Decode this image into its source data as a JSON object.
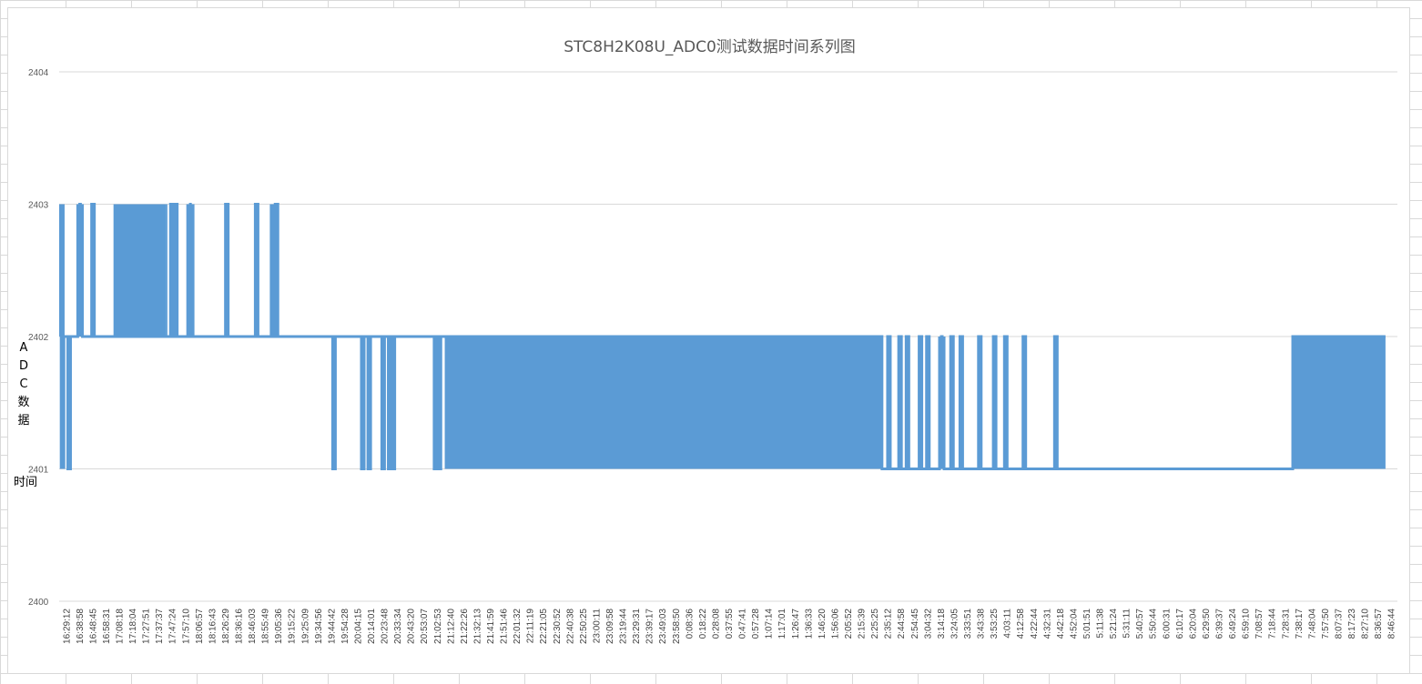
{
  "chart_data": {
    "type": "line",
    "title": "STC8H2K08U_ADC0测试数据时间系列图",
    "ylabel_chars": [
      "A",
      "D",
      "C",
      "数",
      "据"
    ],
    "xlabel": "时间",
    "ylim": [
      2400,
      2404
    ],
    "yticks": [
      "2400",
      "2401",
      "2402",
      "2403",
      "2404"
    ],
    "grid": true,
    "line_color": "#5b9bd5",
    "x_categories": [
      "16:29:12",
      "16:38:58",
      "16:48:45",
      "16:58:31",
      "17:08:18",
      "17:18:04",
      "17:27:51",
      "17:37:37",
      "17:47:24",
      "17:57:10",
      "18:06:57",
      "18:16:43",
      "18:26:29",
      "18:36:16",
      "18:46:03",
      "18:55:49",
      "19:05:36",
      "19:15:22",
      "19:25:09",
      "19:34:56",
      "19:44:42",
      "19:54:28",
      "20:04:15",
      "20:14:01",
      "20:23:48",
      "20:33:34",
      "20:43:20",
      "20:53:07",
      "21:02:53",
      "21:12:40",
      "21:22:26",
      "21:32:13",
      "21:41:59",
      "21:51:46",
      "22:01:32",
      "22:11:19",
      "22:21:05",
      "22:30:52",
      "22:40:38",
      "22:50:25",
      "23:00:11",
      "23:09:58",
      "23:19:44",
      "23:29:31",
      "23:39:17",
      "23:49:03",
      "23:58:50",
      "0:08:36",
      "0:18:22",
      "0:28:08",
      "0:37:55",
      "0:47:41",
      "0:57:28",
      "1:07:14",
      "1:17:01",
      "1:26:47",
      "1:36:33",
      "1:46:20",
      "1:56:06",
      "2:05:52",
      "2:15:39",
      "2:25:25",
      "2:35:12",
      "2:44:58",
      "2:54:45",
      "3:04:32",
      "3:14:18",
      "3:24:05",
      "3:33:51",
      "3:43:38",
      "3:53:25",
      "4:03:11",
      "4:12:58",
      "4:22:44",
      "4:32:31",
      "4:42:18",
      "4:52:04",
      "5:01:51",
      "5:11:38",
      "5:21:24",
      "5:31:11",
      "5:40:57",
      "5:50:44",
      "6:00:31",
      "6:10:17",
      "6:20:04",
      "6:29:50",
      "6:39:37",
      "6:49:24",
      "6:59:10",
      "7:08:57",
      "7:18:44",
      "7:28:31",
      "7:38:17",
      "7:48:04",
      "7:57:50",
      "8:07:37",
      "8:17:23",
      "8:27:10",
      "8:36:57",
      "8:46:44"
    ],
    "segments": [
      {
        "from": "16:29:12",
        "to": "16:38:58",
        "level": 2402,
        "spikes": [
          [
            0.0,
            2403
          ],
          [
            0.05,
            2401
          ],
          [
            0.55,
            2401
          ]
        ]
      },
      {
        "from": "16:38:58",
        "to": "16:48:45",
        "level": 2402,
        "spikes": [
          [
            0.3,
            2403
          ],
          [
            0.45,
            2403
          ]
        ]
      },
      {
        "from": "16:48:45",
        "to": "16:58:31",
        "level": 2402,
        "spikes": [
          [
            0.35,
            2403
          ]
        ]
      },
      {
        "from": "17:08:18",
        "to": "17:47:24",
        "level": 2402,
        "dense_range": [
          2402,
          2403
        ],
        "note": ""
      },
      {
        "from": "17:47:24",
        "to": "18:06:57",
        "level": 2402,
        "spikes": [
          [
            0.15,
            2403
          ],
          [
            0.3,
            2403
          ],
          [
            0.8,
            2403
          ],
          [
            0.9,
            2403
          ]
        ]
      },
      {
        "from": "18:26:29",
        "to": "18:36:16",
        "level": 2402,
        "spikes": [
          [
            0.45,
            2403
          ]
        ]
      },
      {
        "from": "18:46:03",
        "to": "19:05:36",
        "level": 2402,
        "spikes": [
          [
            0.35,
            2403
          ],
          [
            0.95,
            2403
          ],
          [
            1.1,
            2403
          ]
        ]
      },
      {
        "from": "19:34:56",
        "to": "20:43:20",
        "level": 2402,
        "spikes": [
          [
            0.22,
            2401
          ],
          [
            0.53,
            2401
          ],
          [
            0.6,
            2401
          ],
          [
            0.75,
            2401
          ],
          [
            0.82,
            2401
          ],
          [
            0.86,
            2401
          ]
        ]
      },
      {
        "from": "20:53:07",
        "to": "21:12:40",
        "level": 2402,
        "spikes": [
          [
            0.6,
            2401
          ],
          [
            0.75,
            2401
          ]
        ]
      },
      {
        "from": "21:12:40",
        "to": "2:35:12",
        "level": 2401.5,
        "dense_range": [
          2401,
          2402
        ]
      },
      {
        "from": "2:35:12",
        "to": "4:52:04",
        "level": 2401,
        "spikes_up": [
          0.03,
          0.09,
          0.13,
          0.2,
          0.24,
          0.31,
          0.32,
          0.37,
          0.42,
          0.52,
          0.6,
          0.66,
          0.76,
          0.93
        ]
      },
      {
        "from": "4:52:04",
        "to": "7:38:17",
        "level": 2401
      },
      {
        "from": "7:38:17",
        "to": "8:46:44",
        "level": 2401.5,
        "dense_range": [
          2401,
          2402
        ]
      }
    ]
  }
}
